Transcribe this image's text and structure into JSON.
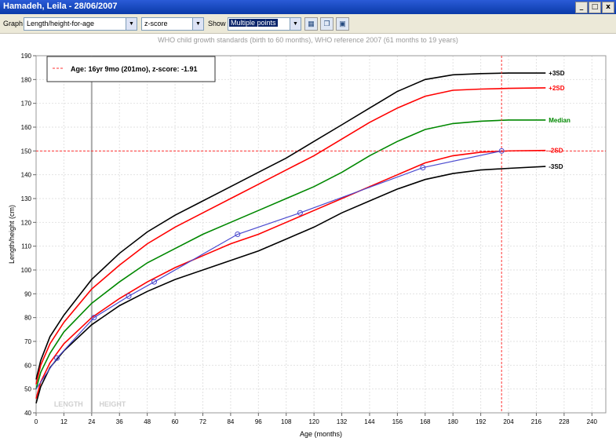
{
  "window": {
    "title": "Hamadeh, Leila - 28/06/2007",
    "buttons": [
      "_",
      "□",
      "x"
    ]
  },
  "toolbar": {
    "graph_label": "Graph",
    "graph_value": "Length/height-for-age",
    "scale_value": "z-score",
    "show_label": "Show",
    "show_value": "Multiple points",
    "icons": [
      "calendar-icon",
      "copy-icon",
      "save-icon"
    ]
  },
  "subtitle": "WHO child growth standards (birth to 60 months), WHO reference 2007 (61 months to 19 years)",
  "legend": {
    "text": "Age: 16yr 9mo (201mo), z-score: -1.91",
    "color": "#ff3333"
  },
  "chart_data": {
    "type": "line",
    "xlabel": "Age (months)",
    "ylabel": "Length/height (cm)",
    "xlim": [
      0,
      246
    ],
    "ylim": [
      40,
      190
    ],
    "xticks": [
      0,
      12,
      24,
      36,
      48,
      60,
      72,
      84,
      96,
      108,
      120,
      132,
      144,
      156,
      168,
      180,
      192,
      204,
      216,
      228,
      240
    ],
    "yticks": [
      40,
      50,
      60,
      70,
      80,
      90,
      100,
      110,
      120,
      130,
      140,
      150,
      160,
      170,
      180,
      190
    ],
    "region_labels": [
      {
        "text": "LENGTH",
        "x": 14
      },
      {
        "text": "HEIGHT",
        "x": 33
      }
    ],
    "length_height_boundary": 24,
    "crosshair": {
      "x": 201,
      "y": 150,
      "color": "#ff3333"
    },
    "series": [
      {
        "name": "+3SD",
        "color": "#000000",
        "label_color": "#000000",
        "x": [
          0,
          2,
          6,
          12,
          24,
          36,
          48,
          60,
          72,
          84,
          96,
          108,
          120,
          132,
          144,
          156,
          168,
          180,
          192,
          204,
          220
        ],
        "y": [
          54,
          62,
          72,
          81,
          96,
          107,
          116,
          123,
          129,
          135,
          141,
          147,
          154,
          161,
          168,
          175,
          180,
          182,
          182.5,
          182.7,
          182.7
        ]
      },
      {
        "name": "+2SD",
        "color": "#ff0000",
        "label_color": "#ff0000",
        "x": [
          0,
          2,
          6,
          12,
          24,
          36,
          48,
          60,
          72,
          84,
          96,
          108,
          120,
          132,
          144,
          156,
          168,
          180,
          192,
          204,
          220
        ],
        "y": [
          52,
          60,
          69,
          78,
          92,
          102,
          111,
          118,
          124,
          130,
          136,
          142,
          148,
          155,
          162,
          168,
          173,
          175.5,
          176,
          176.3,
          176.5
        ]
      },
      {
        "name": "Median",
        "color": "#008800",
        "label_color": "#008800",
        "x": [
          0,
          2,
          6,
          12,
          24,
          36,
          48,
          60,
          72,
          84,
          96,
          108,
          120,
          132,
          144,
          156,
          168,
          180,
          192,
          204,
          220
        ],
        "y": [
          50,
          57,
          65,
          74,
          86,
          95,
          103,
          109,
          115,
          120,
          125,
          130,
          135,
          141,
          148,
          154,
          159,
          161.5,
          162.5,
          163,
          163
        ]
      },
      {
        "name": "-2SD",
        "color": "#ff0000",
        "label_color": "#ff0000",
        "x": [
          0,
          2,
          6,
          12,
          24,
          36,
          48,
          60,
          72,
          84,
          96,
          108,
          120,
          132,
          144,
          156,
          168,
          180,
          192,
          204,
          220
        ],
        "y": [
          46,
          53,
          61,
          69,
          80,
          88,
          95,
          101,
          106,
          111,
          115,
          120,
          125,
          130,
          135,
          140,
          145,
          148,
          149.5,
          150,
          150.2
        ]
      },
      {
        "name": "-3SD",
        "color": "#000000",
        "label_color": "#000000",
        "x": [
          0,
          2,
          6,
          12,
          24,
          36,
          48,
          60,
          72,
          84,
          96,
          108,
          120,
          132,
          144,
          156,
          168,
          180,
          192,
          204,
          220
        ],
        "y": [
          44,
          51,
          59,
          66,
          77,
          85,
          91,
          96,
          100,
          104,
          108,
          113,
          118,
          124,
          129,
          134,
          138,
          140.5,
          142,
          142.7,
          143.5
        ]
      }
    ],
    "patient": {
      "color": "#4a4acf",
      "x": [
        0,
        9,
        25,
        40,
        51,
        87,
        114,
        167,
        201
      ],
      "y": [
        50,
        63,
        80,
        89,
        95,
        115,
        124,
        143,
        150
      ]
    }
  }
}
